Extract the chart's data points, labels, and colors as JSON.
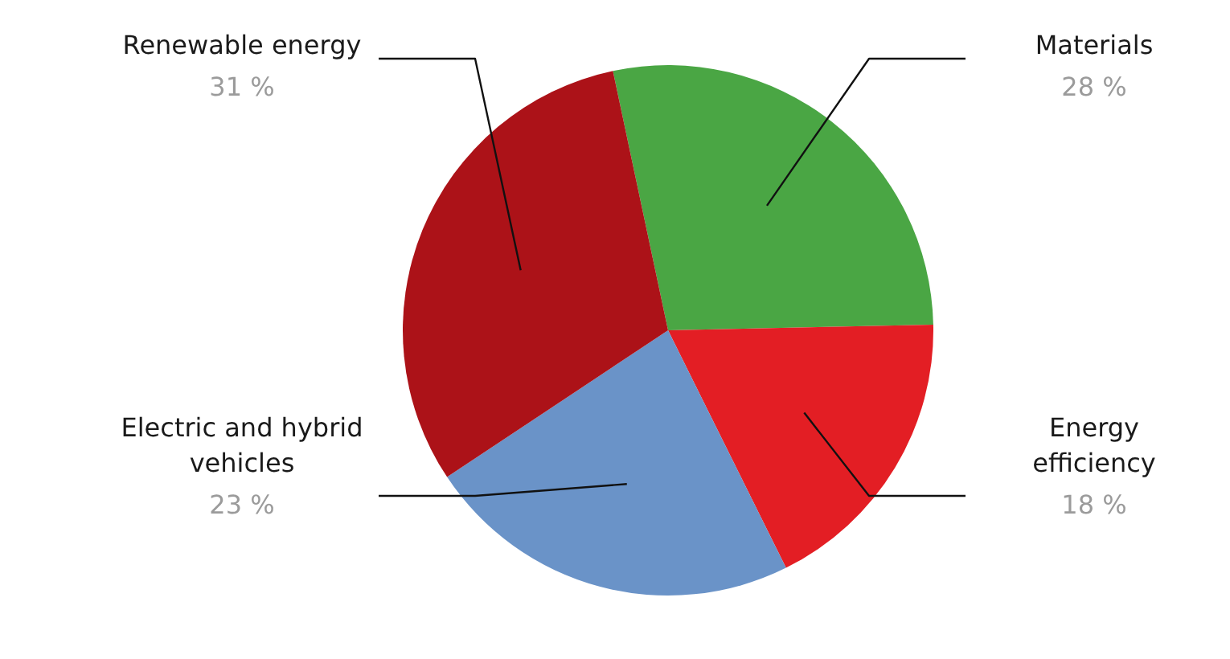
{
  "chart_data": {
    "type": "pie",
    "categories": [
      "Materials",
      "Energy efficiency",
      "Electric and hybrid vehicles",
      "Renewable energy"
    ],
    "values": [
      28,
      18,
      23,
      31
    ],
    "colors": [
      "#4aa644",
      "#e31e24",
      "#6a93c8",
      "#ac1218"
    ],
    "value_labels": [
      "28 %",
      "18 %",
      "23 %",
      "31 %"
    ]
  }
}
